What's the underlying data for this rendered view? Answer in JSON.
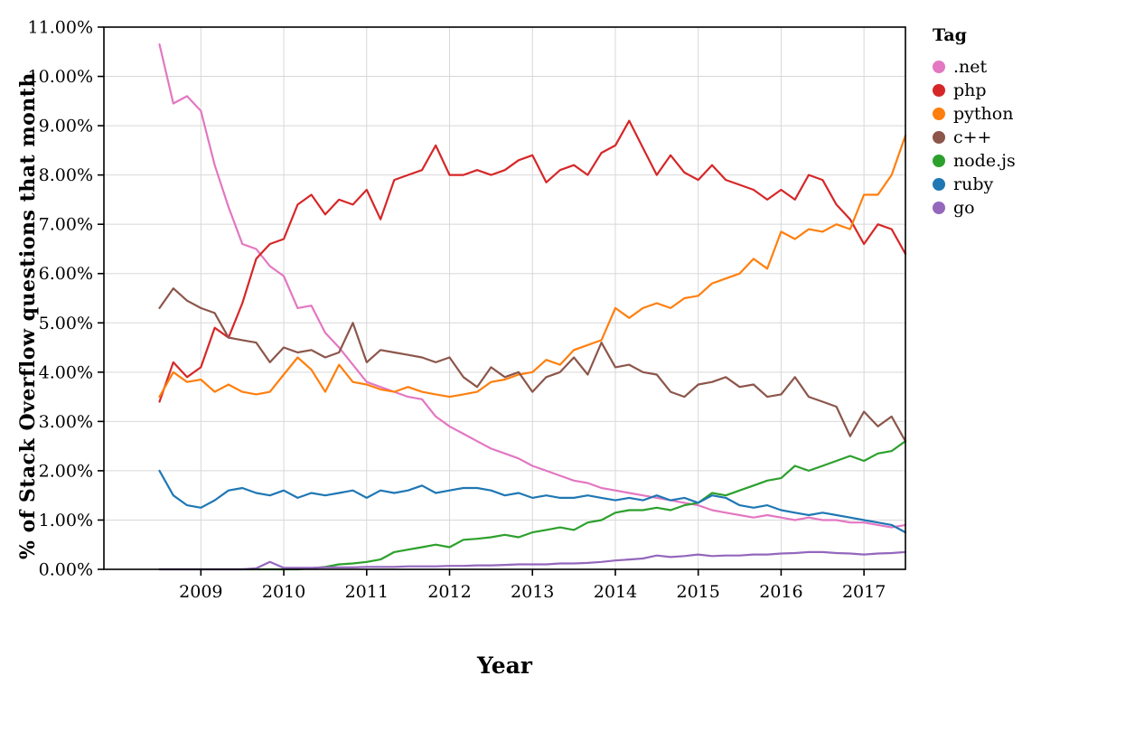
{
  "chart_data": {
    "type": "line",
    "xlabel": "Year",
    "ylabel": "% of Stack Overflow questions that month",
    "legend_title": "Tag",
    "legend_position": "right",
    "grid": true,
    "xlim": [
      2007.83,
      2017.5
    ],
    "ylim": [
      0,
      11
    ],
    "x_ticks": [
      2009,
      2010,
      2011,
      2012,
      2013,
      2014,
      2015,
      2016,
      2017
    ],
    "x_tick_labels": [
      "2009",
      "2010",
      "2011",
      "2012",
      "2013",
      "2014",
      "2015",
      "2016",
      "2017"
    ],
    "y_ticks": [
      0,
      1,
      2,
      3,
      4,
      5,
      6,
      7,
      8,
      9,
      10,
      11
    ],
    "y_tick_labels": [
      "0.00%",
      "1.00%",
      "2.00%",
      "3.00%",
      "4.00%",
      "5.00%",
      "6.00%",
      "7.00%",
      "8.00%",
      "9.00%",
      "10.00%",
      "11.00%"
    ],
    "x": [
      2008.5,
      2008.667,
      2008.833,
      2009.0,
      2009.167,
      2009.333,
      2009.5,
      2009.667,
      2009.833,
      2010.0,
      2010.167,
      2010.333,
      2010.5,
      2010.667,
      2010.833,
      2011.0,
      2011.167,
      2011.333,
      2011.5,
      2011.667,
      2011.833,
      2012.0,
      2012.167,
      2012.333,
      2012.5,
      2012.667,
      2012.833,
      2013.0,
      2013.167,
      2013.333,
      2013.5,
      2013.667,
      2013.833,
      2014.0,
      2014.167,
      2014.333,
      2014.5,
      2014.667,
      2014.833,
      2015.0,
      2015.167,
      2015.333,
      2015.5,
      2015.667,
      2015.833,
      2016.0,
      2016.167,
      2016.333,
      2016.5,
      2016.667,
      2016.833,
      2017.0,
      2017.167,
      2017.333,
      2017.5
    ],
    "series": [
      {
        "name": ".net",
        "color": "#e377c2",
        "values": [
          10.65,
          9.45,
          9.6,
          9.3,
          8.2,
          7.35,
          6.6,
          6.5,
          6.15,
          5.95,
          5.3,
          5.35,
          4.8,
          4.5,
          4.15,
          3.8,
          3.7,
          3.6,
          3.5,
          3.45,
          3.1,
          2.9,
          2.75,
          2.6,
          2.45,
          2.35,
          2.25,
          2.1,
          2.0,
          1.9,
          1.8,
          1.75,
          1.65,
          1.6,
          1.55,
          1.5,
          1.45,
          1.4,
          1.35,
          1.3,
          1.2,
          1.15,
          1.1,
          1.05,
          1.1,
          1.05,
          1.0,
          1.05,
          1.0,
          1.0,
          0.95,
          0.95,
          0.9,
          0.85,
          0.9
        ]
      },
      {
        "name": "php",
        "color": "#d62728",
        "values": [
          3.4,
          4.2,
          3.9,
          4.1,
          4.9,
          4.7,
          5.4,
          6.3,
          6.6,
          6.7,
          7.4,
          7.6,
          7.2,
          7.5,
          7.4,
          7.7,
          7.1,
          7.9,
          8.0,
          8.1,
          8.6,
          8.0,
          8.0,
          8.1,
          8.0,
          8.1,
          8.3,
          8.4,
          7.85,
          8.1,
          8.2,
          8.0,
          8.45,
          8.6,
          9.1,
          8.55,
          8.0,
          8.4,
          8.05,
          7.9,
          8.2,
          7.9,
          7.8,
          7.7,
          7.5,
          7.7,
          7.5,
          8.0,
          7.9,
          7.4,
          7.1,
          6.6,
          7.0,
          6.9,
          6.4
        ]
      },
      {
        "name": "python",
        "color": "#ff7f0e",
        "values": [
          3.5,
          4.0,
          3.8,
          3.85,
          3.6,
          3.75,
          3.6,
          3.55,
          3.6,
          3.95,
          4.3,
          4.05,
          3.6,
          4.15,
          3.8,
          3.75,
          3.65,
          3.6,
          3.7,
          3.6,
          3.55,
          3.5,
          3.55,
          3.6,
          3.8,
          3.85,
          3.95,
          4.0,
          4.25,
          4.15,
          4.45,
          4.55,
          4.65,
          5.3,
          5.1,
          5.3,
          5.4,
          5.3,
          5.5,
          5.55,
          5.8,
          5.9,
          6.0,
          6.3,
          6.1,
          6.85,
          6.7,
          6.9,
          6.85,
          7.0,
          6.9,
          7.6,
          7.6,
          8.0,
          8.8
        ]
      },
      {
        "name": "c++",
        "color": "#8c564b",
        "values": [
          5.3,
          5.7,
          5.45,
          5.3,
          5.2,
          4.7,
          4.65,
          4.6,
          4.2,
          4.5,
          4.4,
          4.45,
          4.3,
          4.4,
          5.0,
          4.2,
          4.45,
          4.4,
          4.35,
          4.3,
          4.2,
          4.3,
          3.9,
          3.7,
          4.1,
          3.9,
          4.0,
          3.6,
          3.9,
          4.0,
          4.3,
          3.95,
          4.6,
          4.1,
          4.15,
          4.0,
          3.95,
          3.6,
          3.5,
          3.75,
          3.8,
          3.9,
          3.7,
          3.75,
          3.5,
          3.55,
          3.9,
          3.5,
          3.4,
          3.3,
          2.7,
          3.2,
          2.9,
          3.1,
          2.6
        ]
      },
      {
        "name": "node.js",
        "color": "#2ca02c",
        "values": [
          0.0,
          0.0,
          0.0,
          0.0,
          0.0,
          0.0,
          0.0,
          0.0,
          0.0,
          0.0,
          0.0,
          0.02,
          0.05,
          0.1,
          0.12,
          0.15,
          0.2,
          0.35,
          0.4,
          0.45,
          0.5,
          0.45,
          0.6,
          0.62,
          0.65,
          0.7,
          0.65,
          0.75,
          0.8,
          0.85,
          0.8,
          0.95,
          1.0,
          1.15,
          1.2,
          1.2,
          1.25,
          1.2,
          1.3,
          1.35,
          1.55,
          1.5,
          1.6,
          1.7,
          1.8,
          1.85,
          2.1,
          2.0,
          2.1,
          2.2,
          2.3,
          2.2,
          2.35,
          2.4,
          2.6
        ]
      },
      {
        "name": "ruby",
        "color": "#1f77b4",
        "values": [
          2.0,
          1.5,
          1.3,
          1.25,
          1.4,
          1.6,
          1.65,
          1.55,
          1.5,
          1.6,
          1.45,
          1.55,
          1.5,
          1.55,
          1.6,
          1.45,
          1.6,
          1.55,
          1.6,
          1.7,
          1.55,
          1.6,
          1.65,
          1.65,
          1.6,
          1.5,
          1.55,
          1.45,
          1.5,
          1.45,
          1.45,
          1.5,
          1.45,
          1.4,
          1.45,
          1.4,
          1.5,
          1.4,
          1.45,
          1.35,
          1.5,
          1.45,
          1.3,
          1.25,
          1.3,
          1.2,
          1.15,
          1.1,
          1.15,
          1.1,
          1.05,
          1.0,
          0.95,
          0.9,
          0.75
        ]
      },
      {
        "name": "go",
        "color": "#9467bd",
        "values": [
          0.0,
          0.0,
          0.0,
          0.0,
          0.0,
          0.0,
          0.0,
          0.02,
          0.15,
          0.03,
          0.03,
          0.03,
          0.04,
          0.04,
          0.04,
          0.05,
          0.05,
          0.05,
          0.06,
          0.06,
          0.06,
          0.07,
          0.07,
          0.08,
          0.08,
          0.09,
          0.1,
          0.1,
          0.1,
          0.12,
          0.12,
          0.13,
          0.15,
          0.18,
          0.2,
          0.22,
          0.28,
          0.25,
          0.27,
          0.3,
          0.27,
          0.28,
          0.28,
          0.3,
          0.3,
          0.32,
          0.33,
          0.35,
          0.35,
          0.33,
          0.32,
          0.3,
          0.32,
          0.33,
          0.35
        ]
      }
    ]
  }
}
